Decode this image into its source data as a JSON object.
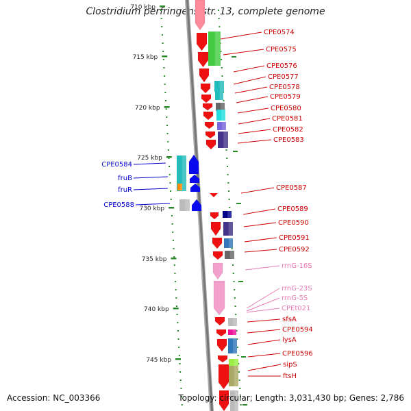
{
  "title": "Clostridium perfringens str. 13, complete genome",
  "footer": {
    "accession": "Accession: NC_003366",
    "topology": "Topology: circular; Length: 3,031,430 bp; Genes: 2,786"
  },
  "colors": {
    "backbone": "#8a8a8a",
    "tick": "#2a8a2a",
    "forward_label": "#cc0000",
    "reverse_label": "#0000cc",
    "rrna_label": "#e87ab4"
  },
  "scale": {
    "unit": "kbp",
    "labels": [
      "710 kbp",
      "715 kbp",
      "720 kbp",
      "725 kbp",
      "730 kbp",
      "735 kbp",
      "740 kbp",
      "745 kbp"
    ]
  },
  "genes": [
    {
      "label": "CPE0574",
      "strand": "+",
      "color": "#44cc44"
    },
    {
      "label": "CPE0575",
      "strand": "+",
      "color": "#44cc44"
    },
    {
      "label": "CPE0576",
      "strand": "+",
      "color": "#ffffff"
    },
    {
      "label": "CPE0577",
      "strand": "+",
      "color": "#22bbbb"
    },
    {
      "label": "CPE0578",
      "strand": "+",
      "color": "#22bbbb"
    },
    {
      "label": "CPE0579",
      "strand": "+",
      "color": "#666666"
    },
    {
      "label": "CPE0580",
      "strand": "+",
      "color": "#22dddd"
    },
    {
      "label": "CPE0581",
      "strand": "+",
      "color": "#7766dd"
    },
    {
      "label": "CPE0582",
      "strand": "+",
      "color": "#ffffff"
    },
    {
      "label": "CPE0583",
      "strand": "+",
      "color": "#443388"
    },
    {
      "label": "CPE0584",
      "strand": "-",
      "color": "#22bbbb"
    },
    {
      "label": "fruB",
      "strand": "-",
      "color": "#22bbbb"
    },
    {
      "label": "fruR",
      "strand": "-",
      "color": "#ff8800"
    },
    {
      "label": "CPE0587",
      "strand": "+",
      "color": "#ffffff"
    },
    {
      "label": "CPE0588",
      "strand": "-",
      "color": "#bbbbbb"
    },
    {
      "label": "CPE0589",
      "strand": "+",
      "color": "#000088"
    },
    {
      "label": "CPE0590",
      "strand": "+",
      "color": "#443388"
    },
    {
      "label": "CPE0591",
      "strand": "+",
      "color": "#3377bb"
    },
    {
      "label": "CPE0592",
      "strand": "+",
      "color": "#666666"
    },
    {
      "label": "rrnG-16S",
      "strand": "+",
      "color": "#f4a0cc"
    },
    {
      "label": "rrnG-23S",
      "strand": "+",
      "color": "#f4a0cc"
    },
    {
      "label": "rrnG-5S",
      "strand": "+",
      "color": "#f4a0cc"
    },
    {
      "label": "CPEt021",
      "strand": "+",
      "color": "#f4a0cc"
    },
    {
      "label": "sfsA",
      "strand": "+",
      "color": "#bbbbbb"
    },
    {
      "label": "CPE0594",
      "strand": "+",
      "color": "#ee1199"
    },
    {
      "label": "lysA",
      "strand": "+",
      "color": "#3377bb"
    },
    {
      "label": "CPE0596",
      "strand": "+",
      "color": "#99ee44"
    },
    {
      "label": "sipS",
      "strand": "+",
      "color": "#aaaa66"
    },
    {
      "label": "ftsH",
      "strand": "+",
      "color": "#aaaa66"
    }
  ]
}
